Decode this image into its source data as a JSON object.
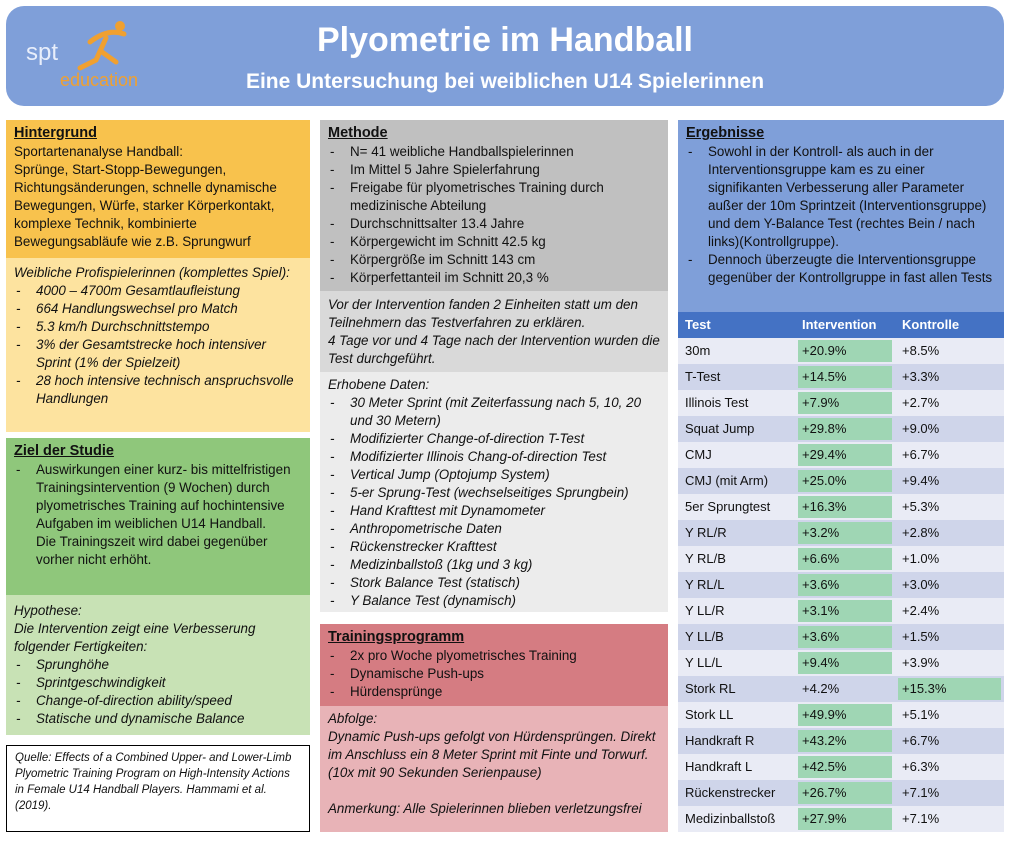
{
  "header": {
    "logo_top": "spt",
    "logo_bottom": "education",
    "title": "Plyometrie im Handball",
    "subtitle": "Eine Untersuchung bei weiblichen U14 Spielerinnen"
  },
  "hintergrund": {
    "heading": "Hintergrund",
    "intro": "Sportartenanalyse Handball:",
    "text": "Sprünge, Start-Stopp-Bewegungen, Richtungsänderungen, schnelle dynamische Bewegungen, Würfe, starker Körperkontakt, komplexe Technik, kombinierte Bewegungsabläufe wie z.B. Sprungwurf",
    "profile_heading": "Weibliche Profispielerinnen (komplettes Spiel):",
    "profile_items": [
      "4000 – 4700m Gesamtlaufleistung",
      "664 Handlungswechsel pro Match",
      "5.3 km/h Durchschnittstempo",
      "3% der Gesamtstrecke hoch intensiver Sprint (1% der Spielzeit)",
      "28 hoch intensive technisch anspruchsvolle Handlungen"
    ]
  },
  "ziel": {
    "heading": "Ziel der Studie",
    "item": "Auswirkungen einer kurz- bis mittelfristigen Trainingsintervention (9 Wochen) durch plyometrisches Training auf hochintensive Aufgaben im weiblichen U14 Handball.",
    "continuation": "Die Trainingszeit wird dabei gegenüber vorher nicht erhöht.",
    "hypothese_heading": "Hypothese:",
    "hypothese_text": "Die Intervention zeigt eine Verbesserung folgender Fertigkeiten:",
    "hypothese_items": [
      "Sprunghöhe",
      "Sprintgeschwindigkeit",
      "Change-of-direction ability/speed",
      "Statische und dynamische Balance"
    ]
  },
  "quelle": "Quelle: Effects of a Combined Upper- and Lower-Limb Plyometric Training Program on High-Intensity Actions in Female U14 Handball Players. Hammami et al. (2019).",
  "methode": {
    "heading": "Methode",
    "items": [
      "N= 41 weibliche Handballspielerinnen",
      "Im Mittel 5 Jahre Spielerfahrung",
      "Freigabe für plyometrisches Training durch medizinische Abteilung",
      "Durchschnittsalter 13.4 Jahre",
      "Körpergewicht im Schnitt 42.5 kg",
      "Körpergröße im Schnitt 143 cm",
      "Körperfettanteil im Schnitt 20,3 %"
    ],
    "paragraph_1": "Vor der Intervention fanden 2 Einheiten statt um den Teilnehmern das Testverfahren zu erklären.",
    "paragraph_2": "4 Tage vor und 4 Tage nach der Intervention wurden die Test durchgeführt.",
    "erhoben_heading": "Erhobene Daten:",
    "erhoben_items": [
      "30 Meter Sprint (mit Zeiterfassung nach 5, 10, 20 und 30 Metern)",
      "Modifizierter Change-of-direction T-Test",
      "Modifizierter Illinois Chang-of-direction Test",
      "Vertical Jump (Optojump System)",
      "5-er Sprung-Test (wechselseitiges Sprungbein)",
      "Hand Krafttest mit Dynamometer",
      "Anthropometrische Daten",
      "Rückenstrecker Krafttest",
      "Medizinballstoß (1kg und 3 kg)",
      "Stork Balance Test (statisch)",
      "Y Balance Test (dynamisch)"
    ]
  },
  "training": {
    "heading": "Trainingsprogramm",
    "items": [
      "2x pro Woche plyometrisches Training",
      "Dynamische Push-ups",
      "Hürdensprünge"
    ],
    "abfolge_heading": "Abfolge:",
    "abfolge_text": "Dynamic Push-ups gefolgt von Hürdensprüngen. Direkt im Anschluss ein 8 Meter Sprint mit Finte und Torwurf.",
    "pause": "(10x mit 90 Sekunden Serienpause)",
    "note": "Anmerkung: Alle Spielerinnen blieben verletzungsfrei"
  },
  "ergebnisse": {
    "heading": "Ergebnisse",
    "items": [
      "Sowohl in der Kontroll- als auch in der Interventionsgruppe kam es zu einer signifikanten Verbesserung aller Parameter außer der 10m Sprintzeit (Interventionsgruppe) und dem Y-Balance Test (rechtes Bein / nach links)(Kontrollgruppe).",
      "Dennoch überzeugte die Interventionsgruppe gegenüber der Kontrollgruppe in fast allen Tests"
    ],
    "table": {
      "columns": [
        "Test",
        "Intervention",
        "Kontrolle"
      ],
      "highlight_color": "#9fd6b4",
      "rows": [
        [
          "30m",
          "+20.9%",
          "+8.5%",
          "intervention"
        ],
        [
          "T-Test",
          "+14.5%",
          "+3.3%",
          "intervention"
        ],
        [
          "Illinois Test",
          "+7.9%",
          "+2.7%",
          "intervention"
        ],
        [
          "Squat Jump",
          "+29.8%",
          "+9.0%",
          "intervention"
        ],
        [
          "CMJ",
          "+29.4%",
          "+6.7%",
          "intervention"
        ],
        [
          "CMJ (mit Arm)",
          "+25.0%",
          "+9.4%",
          "intervention"
        ],
        [
          "5er Sprungtest",
          "+16.3%",
          "+5.3%",
          "intervention"
        ],
        [
          "Y RL/R",
          "+3.2%",
          "+2.8%",
          "intervention"
        ],
        [
          "Y RL/B",
          "+6.6%",
          "+1.0%",
          "intervention"
        ],
        [
          "Y RL/L",
          "+3.6%",
          "+3.0%",
          "intervention"
        ],
        [
          "Y LL/R",
          "+3.1%",
          "+2.4%",
          "intervention"
        ],
        [
          "Y LL/B",
          "+3.6%",
          "+1.5%",
          "intervention"
        ],
        [
          "Y LL/L",
          "+9.4%",
          "+3.9%",
          "intervention"
        ],
        [
          "Stork RL",
          "+4.2%",
          "+15.3%",
          "kontrolle"
        ],
        [
          "Stork LL",
          "+49.9%",
          "+5.1%",
          "intervention"
        ],
        [
          "Handkraft R",
          "+43.2%",
          "+6.7%",
          "intervention"
        ],
        [
          "Handkraft L",
          "+42.5%",
          "+6.3%",
          "intervention"
        ],
        [
          "Rückenstrecker",
          "+26.7%",
          "+7.1%",
          "intervention"
        ],
        [
          "Medizinballstoß",
          "+27.9%",
          "+7.1%",
          "intervention"
        ]
      ]
    }
  }
}
